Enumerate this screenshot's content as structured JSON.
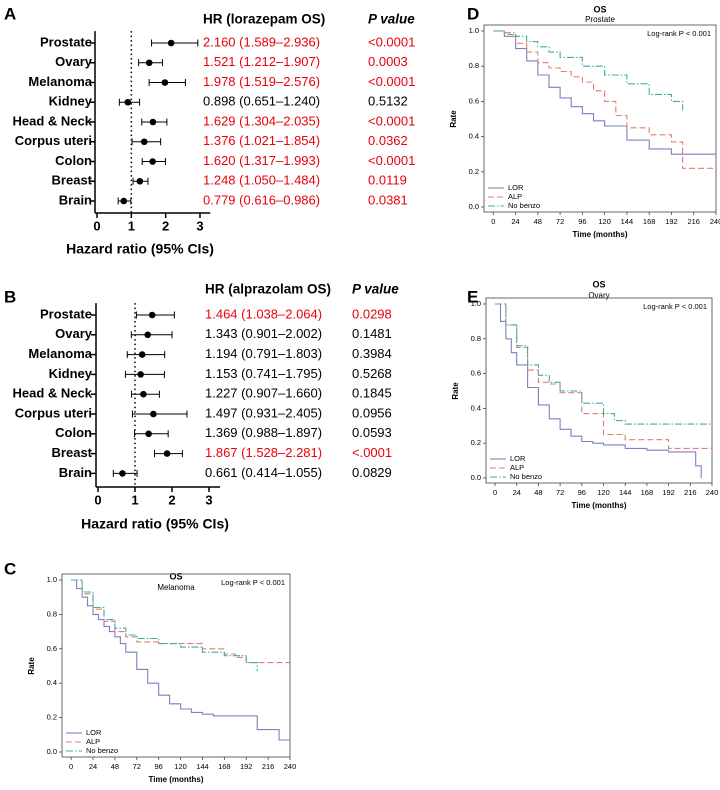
{
  "chart_data": [
    {
      "type": "forest",
      "panel": "A",
      "header": "HR (lorazepam OS)",
      "p_header": "P value",
      "categories": [
        "Prostate",
        "Ovary",
        "Melanoma",
        "Kidney",
        "Head & Neck",
        "Corpus uteri",
        "Colon",
        "Breast",
        "Brain"
      ],
      "values": [
        2.16,
        1.521,
        1.978,
        0.898,
        1.629,
        1.376,
        1.62,
        1.248,
        0.779
      ],
      "lower": [
        1.589,
        1.212,
        1.519,
        0.651,
        1.304,
        1.021,
        1.317,
        1.05,
        0.616
      ],
      "upper": [
        2.936,
        1.907,
        2.576,
        1.24,
        2.035,
        1.854,
        1.993,
        1.484,
        0.986
      ],
      "value_labels": [
        "2.160 (1.589–2.936)",
        "1.521 (1.212–1.907)",
        "1.978 (1.519–2.576)",
        "0.898 (0.651–1.240)",
        "1.629 (1.304–2.035)",
        "1.376 (1.021–1.854)",
        "1.620 (1.317–1.993)",
        "1.248 (1.050–1.484)",
        "0.779 (0.616–0.986)"
      ],
      "p_values": [
        "<0.0001",
        "0.0003",
        "<0.0001",
        "0.5132",
        "<0.0001",
        "0.0362",
        "<0.0001",
        "0.0119",
        "0.0381"
      ],
      "label_colors": [
        "#e8000b",
        "#e8000b",
        "#e8000b",
        "#000000",
        "#e8000b",
        "#e8000b",
        "#e8000b",
        "#e8000b",
        "#e8000b"
      ],
      "xlim": [
        0,
        3.3
      ],
      "xticks": [
        0,
        1,
        2,
        3
      ],
      "reference": 1,
      "xlabel": "Hazard ratio (95% CIs)"
    },
    {
      "type": "forest",
      "panel": "B",
      "header": "HR (alprazolam OS)",
      "p_header": "P value",
      "categories": [
        "Prostate",
        "Ovary",
        "Melanoma",
        "Kidney",
        "Head & Neck",
        "Corpus uteri",
        "Colon",
        "Breast",
        "Brain"
      ],
      "values": [
        1.464,
        1.343,
        1.194,
        1.153,
        1.227,
        1.497,
        1.369,
        1.867,
        0.661
      ],
      "lower": [
        1.038,
        0.901,
        0.791,
        0.741,
        0.907,
        0.931,
        0.988,
        1.528,
        0.414
      ],
      "upper": [
        2.064,
        2.002,
        1.803,
        1.795,
        1.66,
        2.405,
        1.897,
        2.281,
        1.055
      ],
      "value_labels": [
        "1.464 (1.038–2.064)",
        "1.343 (0.901–2.002)",
        "1.194 (0.791–1.803)",
        "1.153 (0.741–1.795)",
        "1.227 (0.907–1.660)",
        "1.497 (0.931–2.405)",
        "1.369 (0.988–1.897)",
        "1.867 (1.528–2.281)",
        "0.661 (0.414–1.055)"
      ],
      "p_values": [
        "0.0298",
        "0.1481",
        "0.3984",
        "0.5268",
        "0.1845",
        "0.0956",
        "0.0593",
        "<.0001",
        "0.0829"
      ],
      "label_colors": [
        "#e8000b",
        "#000000",
        "#000000",
        "#000000",
        "#000000",
        "#000000",
        "#000000",
        "#e8000b",
        "#000000"
      ],
      "xlim": [
        0,
        3.3
      ],
      "xticks": [
        0,
        1,
        2,
        3
      ],
      "reference": 1,
      "xlabel": "Hazard ratio (95% CIs)"
    },
    {
      "type": "step",
      "panel": "C",
      "title": "OS",
      "subtitle": "Melanoma",
      "annotation": "Log-rank P < 0.001",
      "xlabel": "Time (months)",
      "ylabel": "Rate",
      "legend": "lower left",
      "xlim": [
        -10,
        240
      ],
      "xticks": [
        0,
        24,
        48,
        72,
        96,
        120,
        144,
        168,
        192,
        216,
        240
      ],
      "ylim": [
        0,
        1
      ],
      "yticks": [
        {
          "value": 0,
          "label": "0.0"
        },
        0.2,
        0.4,
        0.6,
        0.8,
        {
          "value": 1,
          "label": "1.0"
        }
      ],
      "series": [
        {
          "name": "LOR",
          "color": "#7f7fc4",
          "dash": "solid",
          "x": [
            0,
            6,
            12,
            18,
            24,
            30,
            36,
            42,
            48,
            54,
            60,
            72,
            84,
            96,
            108,
            120,
            132,
            144,
            156,
            168,
            180,
            192,
            204,
            216,
            228,
            240
          ],
          "values": [
            1,
            0.95,
            0.9,
            0.85,
            0.8,
            0.77,
            0.73,
            0.7,
            0.67,
            0.63,
            0.58,
            0.48,
            0.4,
            0.33,
            0.28,
            0.25,
            0.23,
            0.22,
            0.21,
            0.21,
            0.21,
            0.21,
            0.13,
            0.13,
            0.07,
            0.07
          ]
        },
        {
          "name": "ALP",
          "color": "#e0806e",
          "dash": "dashed",
          "x": [
            0,
            12,
            24,
            36,
            48,
            60,
            72,
            84,
            96,
            120,
            144,
            168,
            180,
            192,
            216,
            240
          ],
          "values": [
            1,
            0.92,
            0.83,
            0.76,
            0.7,
            0.67,
            0.64,
            0.64,
            0.63,
            0.63,
            0.6,
            0.57,
            0.55,
            0.52,
            0.52,
            0.52
          ]
        },
        {
          "name": "No benzo",
          "color": "#3fae9f",
          "dash": "dashdot",
          "x": [
            0,
            12,
            24,
            36,
            48,
            60,
            72,
            96,
            120,
            144,
            168,
            192,
            204
          ],
          "values": [
            1,
            0.93,
            0.84,
            0.77,
            0.72,
            0.68,
            0.66,
            0.63,
            0.61,
            0.58,
            0.56,
            0.52,
            0.47
          ]
        }
      ]
    },
    {
      "type": "step",
      "panel": "D",
      "title": "OS",
      "subtitle": "Prostate",
      "annotation": "Log-rank P < 0.001",
      "xlabel": "Time (months)",
      "ylabel": "Rate",
      "legend": "lower left",
      "xlim": [
        -10,
        240
      ],
      "xticks": [
        0,
        24,
        48,
        72,
        96,
        120,
        144,
        168,
        192,
        216,
        240
      ],
      "ylim": [
        0,
        1
      ],
      "yticks": [
        {
          "value": 0,
          "label": "0.0"
        },
        0.2,
        0.4,
        0.6,
        0.8,
        {
          "value": 1,
          "label": "1.0"
        }
      ],
      "series": [
        {
          "name": "LOR",
          "color": "#7f7fc4",
          "dash": "solid",
          "x": [
            0,
            12,
            24,
            36,
            48,
            60,
            72,
            84,
            96,
            108,
            120,
            144,
            168,
            192,
            204,
            240
          ],
          "values": [
            1,
            0.97,
            0.9,
            0.83,
            0.75,
            0.68,
            0.62,
            0.57,
            0.53,
            0.49,
            0.46,
            0.38,
            0.33,
            0.3,
            0.3,
            0.3
          ]
        },
        {
          "name": "ALP",
          "color": "#e0806e",
          "dash": "dashed",
          "x": [
            0,
            12,
            24,
            36,
            48,
            60,
            72,
            84,
            96,
            108,
            120,
            132,
            144,
            168,
            192,
            204,
            216,
            240
          ],
          "values": [
            1,
            0.98,
            0.93,
            0.88,
            0.82,
            0.79,
            0.77,
            0.74,
            0.71,
            0.66,
            0.6,
            0.52,
            0.45,
            0.41,
            0.37,
            0.22,
            0.22,
            0.22
          ]
        },
        {
          "name": "No benzo",
          "color": "#3fae9f",
          "dash": "dashdot",
          "x": [
            0,
            12,
            24,
            36,
            48,
            60,
            72,
            96,
            120,
            144,
            168,
            192,
            204
          ],
          "values": [
            1,
            0.99,
            0.97,
            0.94,
            0.91,
            0.88,
            0.85,
            0.8,
            0.75,
            0.7,
            0.64,
            0.6,
            0.55
          ]
        }
      ]
    },
    {
      "type": "step",
      "panel": "E",
      "title": "OS",
      "subtitle": "Ovary",
      "annotation": "Log-rank P < 0.001",
      "xlabel": "Time (months)",
      "ylabel": "Rate",
      "legend": "lower left",
      "xlim": [
        -10,
        240
      ],
      "xticks": [
        0,
        24,
        48,
        72,
        96,
        120,
        144,
        168,
        192,
        216,
        240
      ],
      "ylim": [
        0,
        1
      ],
      "yticks": [
        {
          "value": 0,
          "label": "0.0"
        },
        0.2,
        0.4,
        0.6,
        0.8,
        {
          "value": 1,
          "label": "1.0"
        }
      ],
      "series": [
        {
          "name": "LOR",
          "color": "#7f7fc4",
          "dash": "solid",
          "x": [
            0,
            6,
            12,
            18,
            24,
            36,
            48,
            60,
            72,
            84,
            96,
            108,
            120,
            144,
            168,
            192,
            216,
            222,
            228
          ],
          "values": [
            1,
            0.9,
            0.8,
            0.72,
            0.65,
            0.52,
            0.42,
            0.34,
            0.28,
            0.24,
            0.21,
            0.2,
            0.19,
            0.17,
            0.16,
            0.15,
            0.15,
            0.07,
            0
          ]
        },
        {
          "name": "ALP",
          "color": "#e0806e",
          "dash": "dashed",
          "x": [
            0,
            12,
            24,
            36,
            48,
            60,
            72,
            96,
            120,
            144,
            168,
            192,
            216,
            240
          ],
          "values": [
            1,
            0.88,
            0.75,
            0.62,
            0.55,
            0.54,
            0.49,
            0.37,
            0.25,
            0.22,
            0.22,
            0.17,
            0.17,
            0.17
          ]
        },
        {
          "name": "No benzo",
          "color": "#3fae9f",
          "dash": "dashdot",
          "x": [
            0,
            12,
            24,
            36,
            48,
            60,
            72,
            96,
            120,
            132,
            144,
            168,
            192,
            216,
            240
          ],
          "values": [
            1,
            0.88,
            0.76,
            0.65,
            0.59,
            0.55,
            0.5,
            0.43,
            0.37,
            0.33,
            0.31,
            0.31,
            0.31,
            0.31,
            0.31
          ]
        }
      ]
    }
  ]
}
